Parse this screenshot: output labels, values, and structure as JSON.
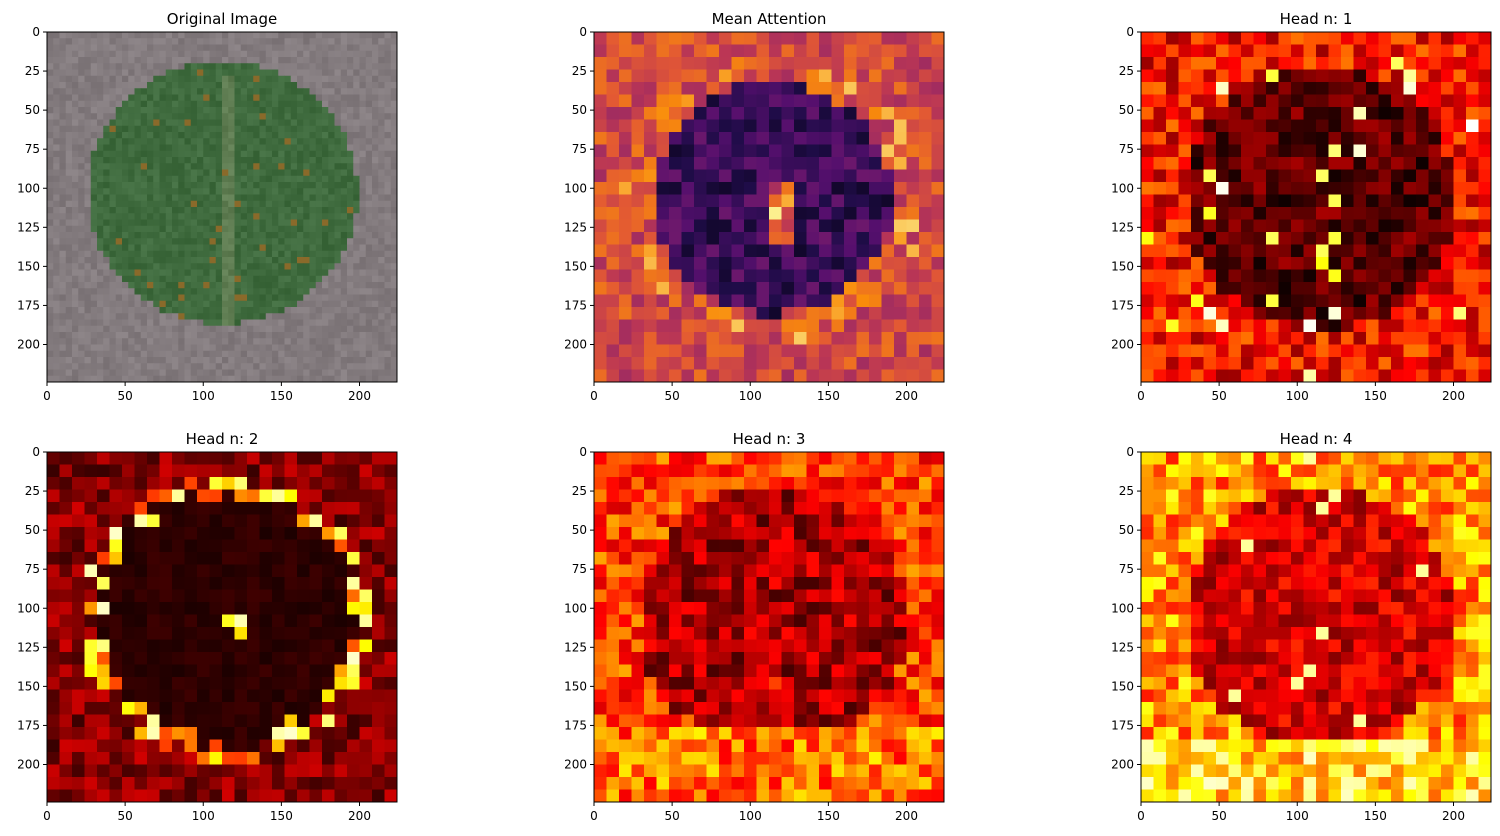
{
  "figure": {
    "background": "#ffffff"
  },
  "chart_data": [
    {
      "type": "heatmap",
      "title": "Original Image",
      "content": "photo",
      "colormap": "rgb-photo",
      "xticks": [
        0,
        50,
        100,
        150,
        200
      ],
      "yticks": [
        0,
        25,
        50,
        75,
        100,
        125,
        150,
        175,
        200
      ],
      "xlim": [
        0,
        224
      ],
      "ylim": [
        224,
        0
      ],
      "grid": false,
      "colors": {
        "background": "#837b7e",
        "leaf": "#3f6b3e",
        "vein": "#5f7d52",
        "lesion": "#8a6a2a"
      }
    },
    {
      "type": "heatmap",
      "title": "Mean Attention",
      "content": "attention-mean",
      "colormap": "inferno",
      "grid_cells": 28,
      "xticks": [
        0,
        50,
        100,
        150,
        200
      ],
      "yticks": [
        0,
        25,
        50,
        75,
        100,
        125,
        150,
        175,
        200
      ],
      "xlim": [
        0,
        224
      ],
      "ylim": [
        224,
        0
      ],
      "grid": false
    },
    {
      "type": "heatmap",
      "title": "Head n: 1",
      "content": "attention-head-1",
      "colormap": "hot",
      "grid_cells": 28,
      "xticks": [
        0,
        50,
        100,
        150,
        200
      ],
      "yticks": [
        0,
        25,
        50,
        75,
        100,
        125,
        150,
        175,
        200
      ],
      "xlim": [
        0,
        224
      ],
      "ylim": [
        224,
        0
      ],
      "grid": false
    },
    {
      "type": "heatmap",
      "title": "Head n: 2",
      "content": "attention-head-2",
      "colormap": "hot",
      "grid_cells": 28,
      "xticks": [
        0,
        50,
        100,
        150,
        200
      ],
      "yticks": [
        0,
        25,
        50,
        75,
        100,
        125,
        150,
        175,
        200
      ],
      "xlim": [
        0,
        224
      ],
      "ylim": [
        224,
        0
      ],
      "grid": false
    },
    {
      "type": "heatmap",
      "title": "Head n: 3",
      "content": "attention-head-3",
      "colormap": "hot",
      "grid_cells": 28,
      "xticks": [
        0,
        50,
        100,
        150,
        200
      ],
      "yticks": [
        0,
        25,
        50,
        75,
        100,
        125,
        150,
        175,
        200
      ],
      "xlim": [
        0,
        224
      ],
      "ylim": [
        224,
        0
      ],
      "grid": false
    },
    {
      "type": "heatmap",
      "title": "Head n: 4",
      "content": "attention-head-4",
      "colormap": "hot",
      "grid_cells": 28,
      "xticks": [
        0,
        50,
        100,
        150,
        200
      ],
      "yticks": [
        0,
        25,
        50,
        75,
        100,
        125,
        150,
        175,
        200
      ],
      "xlim": [
        0,
        224
      ],
      "ylim": [
        224,
        0
      ],
      "grid": false
    }
  ]
}
